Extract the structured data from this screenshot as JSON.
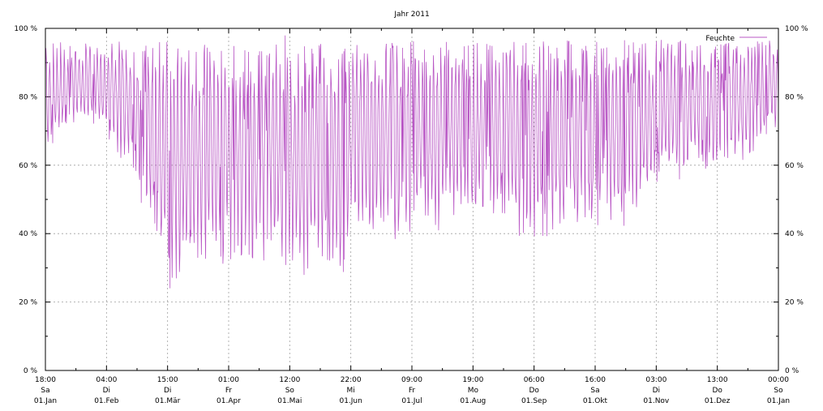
{
  "chart_data": {
    "type": "line",
    "title": "Jahr 2011",
    "xlabel": "",
    "ylabel": "",
    "ylim": [
      0,
      100
    ],
    "y_unit": "%",
    "grid": true,
    "legend_position": "top-right",
    "y_ticks": [
      {
        "value": 0,
        "label": "0 %"
      },
      {
        "value": 20,
        "label": "20 %"
      },
      {
        "value": 40,
        "label": "40 %"
      },
      {
        "value": 60,
        "label": "60 %"
      },
      {
        "value": 80,
        "label": "80 %"
      },
      {
        "value": 100,
        "label": "100 %"
      }
    ],
    "x_ticks": [
      {
        "time": "18:00",
        "weekday": "Sa",
        "date": "01.Jan"
      },
      {
        "time": "04:00",
        "weekday": "Di",
        "date": "01.Feb"
      },
      {
        "time": "15:00",
        "weekday": "Di",
        "date": "01.Mär"
      },
      {
        "time": "01:00",
        "weekday": "Fr",
        "date": "01.Apr"
      },
      {
        "time": "12:00",
        "weekday": "So",
        "date": "01.Mai"
      },
      {
        "time": "22:00",
        "weekday": "Mi",
        "date": "01.Jun"
      },
      {
        "time": "09:00",
        "weekday": "Fr",
        "date": "01.Jul"
      },
      {
        "time": "19:00",
        "weekday": "Mo",
        "date": "01.Aug"
      },
      {
        "time": "06:00",
        "weekday": "Do",
        "date": "01.Sep"
      },
      {
        "time": "16:00",
        "weekday": "Sa",
        "date": "01.Okt"
      },
      {
        "time": "03:00",
        "weekday": "Di",
        "date": "01.Nov"
      },
      {
        "time": "13:00",
        "weekday": "Do",
        "date": "01.Dez"
      },
      {
        "time": "00:00",
        "weekday": "So",
        "date": "01.Jan"
      }
    ],
    "series": [
      {
        "name": "Feuchte",
        "color": "#b957c5",
        "x": [
          "01.Jan",
          "08.Jan",
          "15.Jan",
          "22.Jan",
          "29.Jan",
          "05.Feb",
          "12.Feb",
          "19.Feb",
          "26.Feb",
          "05.Mär",
          "12.Mär",
          "19.Mär",
          "26.Mär",
          "02.Apr",
          "09.Apr",
          "16.Apr",
          "23.Apr",
          "30.Apr",
          "07.Mai",
          "14.Mai",
          "21.Mai",
          "28.Mai",
          "04.Jun",
          "11.Jun",
          "18.Jun",
          "25.Jun",
          "02.Jul",
          "09.Jul",
          "16.Jul",
          "23.Jul",
          "30.Jul",
          "06.Aug",
          "13.Aug",
          "20.Aug",
          "27.Aug",
          "03.Sep",
          "10.Sep",
          "17.Sep",
          "24.Sep",
          "01.Okt",
          "08.Okt",
          "15.Okt",
          "22.Okt",
          "29.Okt",
          "05.Nov",
          "12.Nov",
          "19.Nov",
          "26.Nov",
          "03.Dez",
          "10.Dez",
          "17.Dez",
          "24.Dez",
          "31.Dez"
        ],
        "max": [
          97,
          96,
          95,
          96,
          96,
          97,
          96,
          95,
          96,
          97,
          96,
          95,
          96,
          95,
          96,
          95,
          94,
          98,
          96,
          94,
          97,
          96,
          97,
          96,
          97,
          96,
          98,
          96,
          97,
          96,
          97,
          96,
          97,
          98,
          96,
          97,
          96,
          97,
          96,
          97,
          96,
          98,
          97,
          96,
          98,
          97,
          96,
          97,
          96,
          97,
          96,
          97,
          98
        ],
        "min": [
          61,
          70,
          72,
          73,
          70,
          62,
          60,
          45,
          40,
          19,
          28,
          30,
          32,
          30,
          30,
          30,
          33,
          29,
          22,
          30,
          30,
          26,
          40,
          40,
          42,
          35,
          40,
          44,
          38,
          45,
          40,
          44,
          42,
          45,
          33,
          38,
          40,
          42,
          43,
          42,
          42,
          42,
          44,
          52,
          58,
          55,
          60,
          58,
          57,
          60,
          60,
          68,
          70
        ]
      }
    ]
  }
}
